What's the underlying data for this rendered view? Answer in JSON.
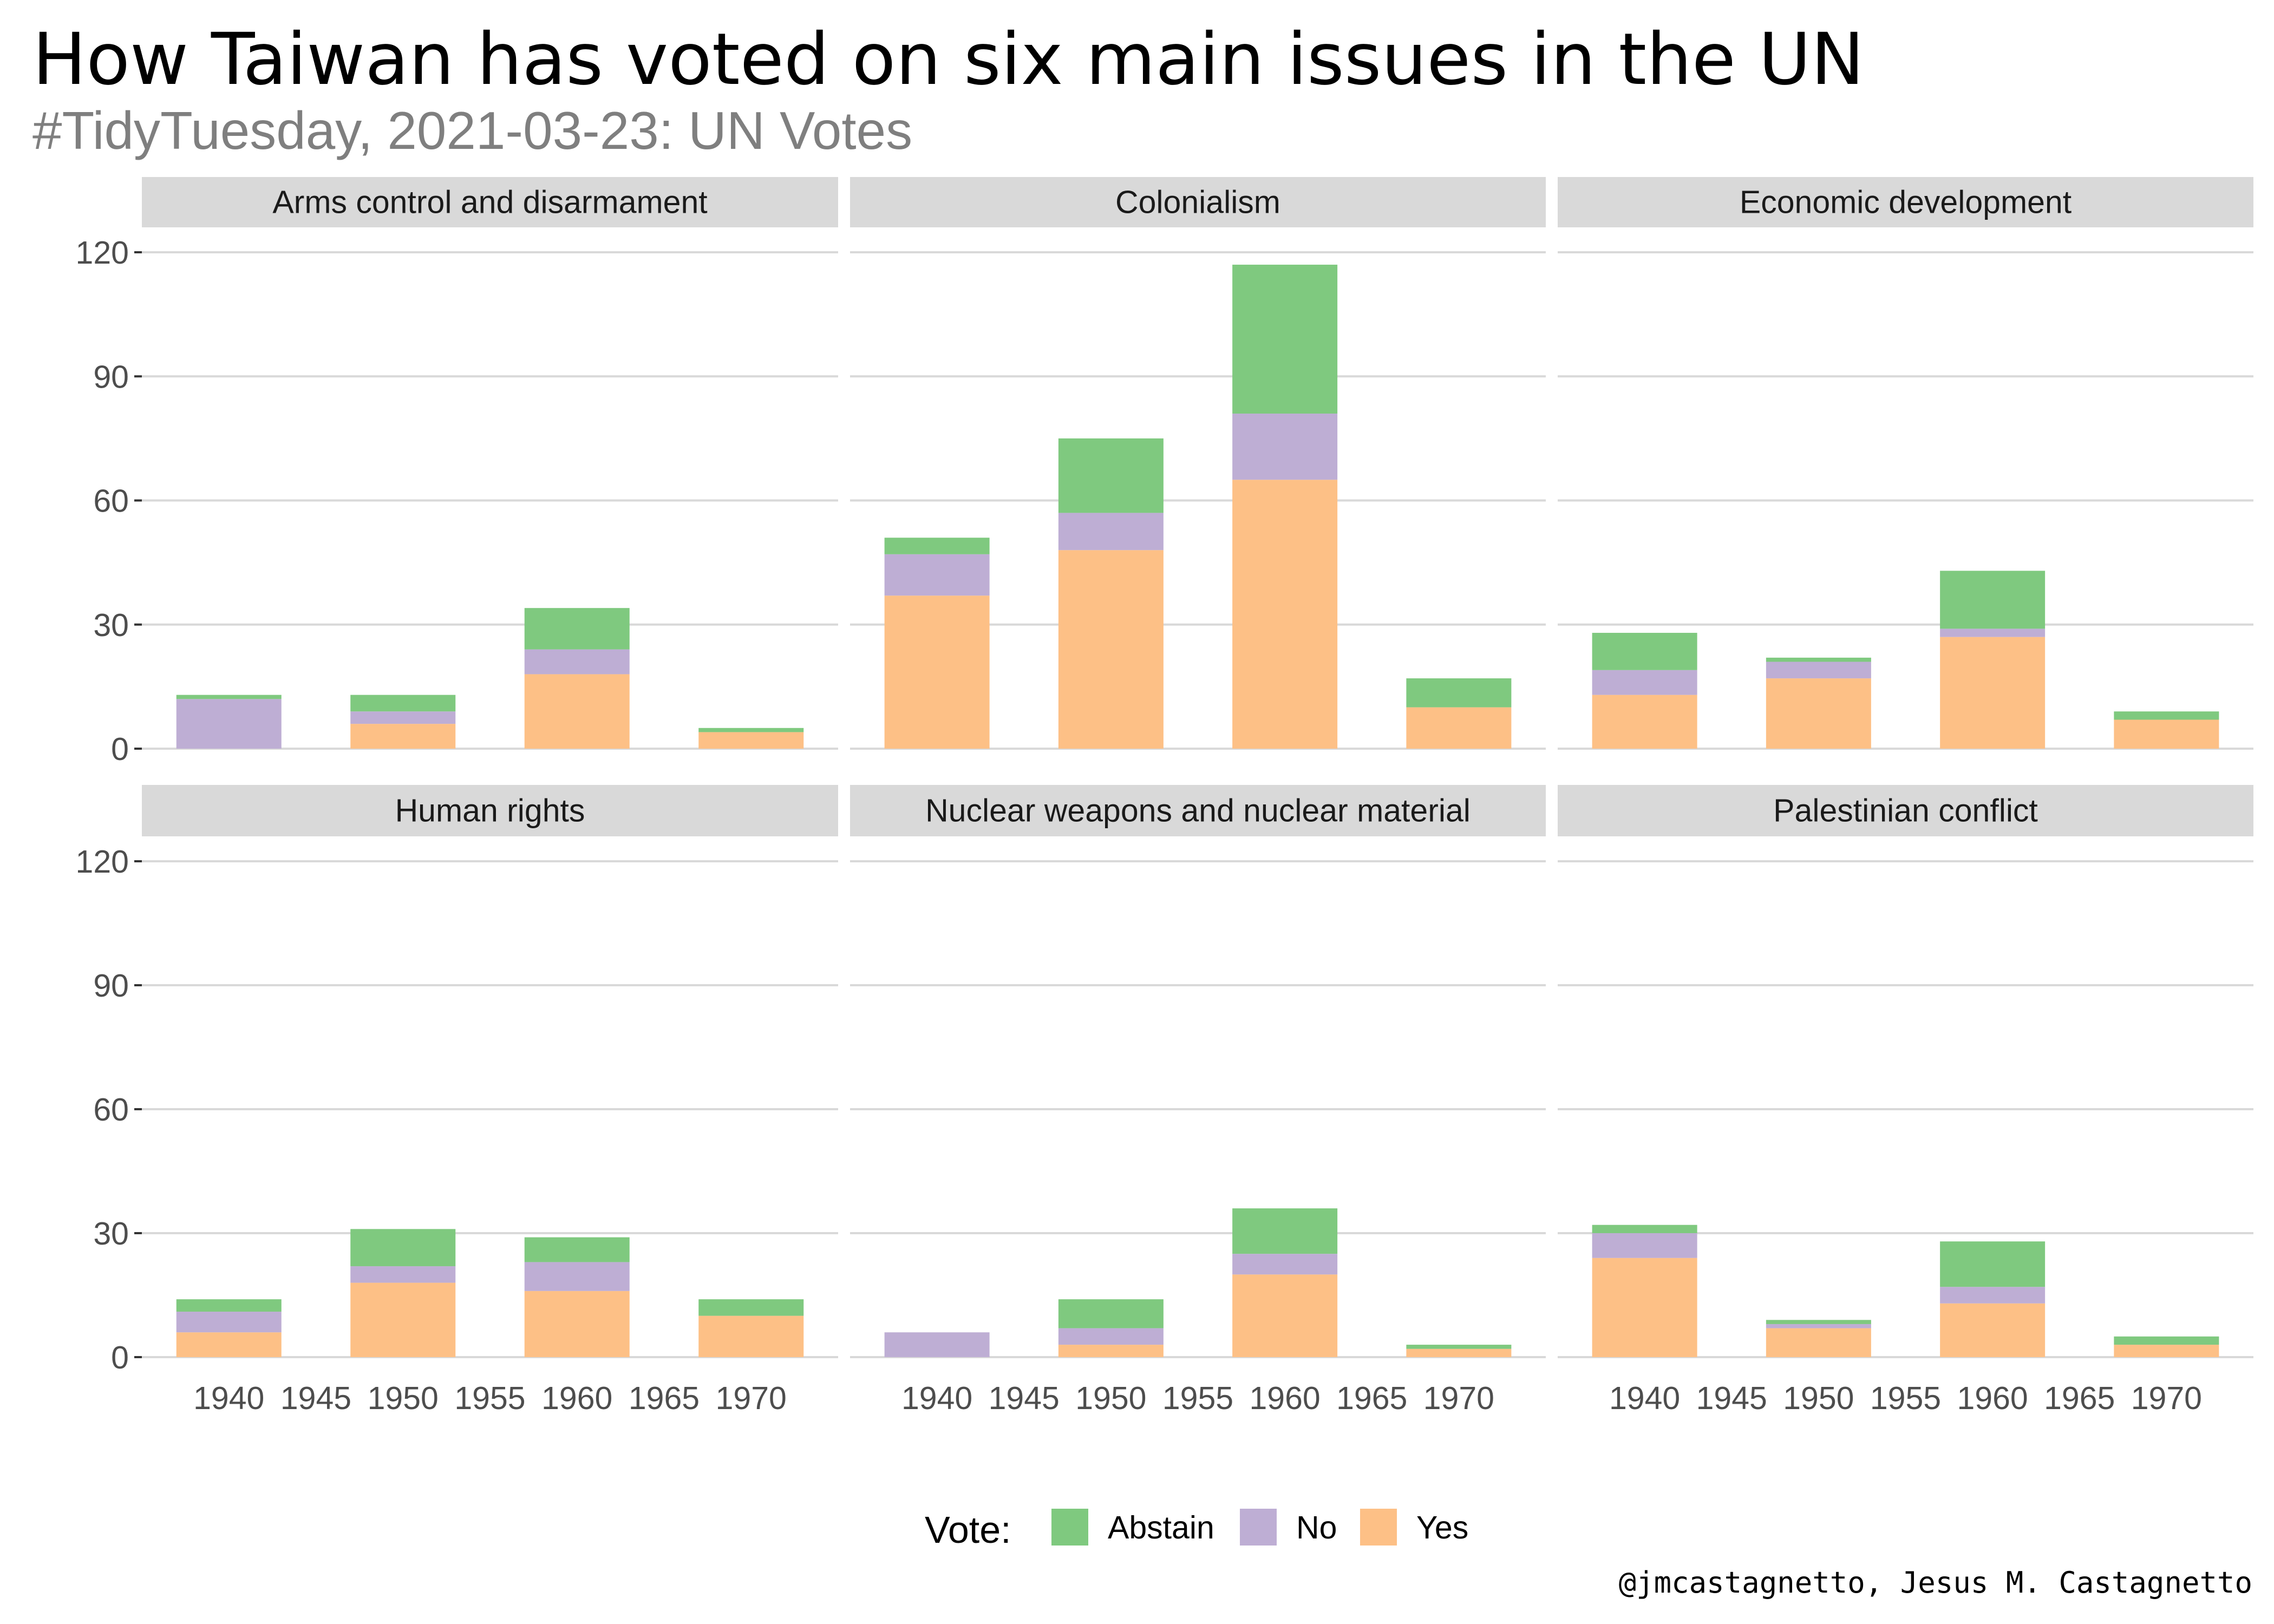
{
  "title": "How Taiwan has voted on six main issues in the UN",
  "subtitle": "#TidyTuesday, 2021-03-23: UN Votes",
  "caption": "@jmcastagnetto, Jesus M. Castagnetto",
  "legend": {
    "title": "Vote:",
    "items": [
      {
        "label": "Abstain",
        "color": "#7FC97F"
      },
      {
        "label": "No",
        "color": "#BEAED4"
      },
      {
        "label": "Yes",
        "color": "#FDC086"
      }
    ]
  },
  "colors": {
    "Abstain": "#7FC97F",
    "No": "#BEAED4",
    "Yes": "#FDC086",
    "strip": "#D9D9D9",
    "grid": "#D9D9D9"
  },
  "chart_data": {
    "type": "bar",
    "stacked": true,
    "facet_layout": "2 rows x 3 columns, shared axes",
    "x_ticks": [
      "1940",
      "1945",
      "1950",
      "1955",
      "1960",
      "1965",
      "1970"
    ],
    "x_range": [
      1935,
      1975
    ],
    "y_ticks": [
      "0",
      "30",
      "60",
      "90",
      "120"
    ],
    "ylim": [
      0,
      120
    ],
    "stack_order": [
      "Yes",
      "No",
      "Abstain"
    ],
    "legend_position": "bottom",
    "grid": "horizontal major gridlines",
    "panels": [
      {
        "issue": "Arms control and disarmament",
        "x": [
          1940,
          1950,
          1960,
          1970
        ],
        "Yes": [
          0,
          6,
          18,
          4
        ],
        "No": [
          12,
          3,
          6,
          0
        ],
        "Abstain": [
          1,
          4,
          10,
          1
        ]
      },
      {
        "issue": "Colonialism",
        "x": [
          1940,
          1950,
          1960,
          1970
        ],
        "Yes": [
          37,
          48,
          65,
          10
        ],
        "No": [
          10,
          9,
          16,
          0
        ],
        "Abstain": [
          4,
          18,
          36,
          7
        ]
      },
      {
        "issue": "Economic development",
        "x": [
          1940,
          1950,
          1960,
          1970
        ],
        "Yes": [
          13,
          17,
          27,
          7
        ],
        "No": [
          6,
          4,
          2,
          0
        ],
        "Abstain": [
          9,
          1,
          14,
          2
        ]
      },
      {
        "issue": "Human rights",
        "x": [
          1940,
          1950,
          1960,
          1970
        ],
        "Yes": [
          6,
          18,
          16,
          10
        ],
        "No": [
          5,
          4,
          7,
          0
        ],
        "Abstain": [
          3,
          9,
          6,
          4
        ]
      },
      {
        "issue": "Nuclear weapons and nuclear material",
        "x": [
          1940,
          1950,
          1960,
          1970
        ],
        "Yes": [
          0,
          3,
          20,
          2
        ],
        "No": [
          6,
          4,
          5,
          0
        ],
        "Abstain": [
          0,
          7,
          11,
          1
        ]
      },
      {
        "issue": "Palestinian conflict",
        "x": [
          1940,
          1950,
          1960,
          1970
        ],
        "Yes": [
          24,
          7,
          13,
          3
        ],
        "No": [
          6,
          1,
          4,
          0
        ],
        "Abstain": [
          2,
          1,
          11,
          2
        ]
      }
    ]
  }
}
